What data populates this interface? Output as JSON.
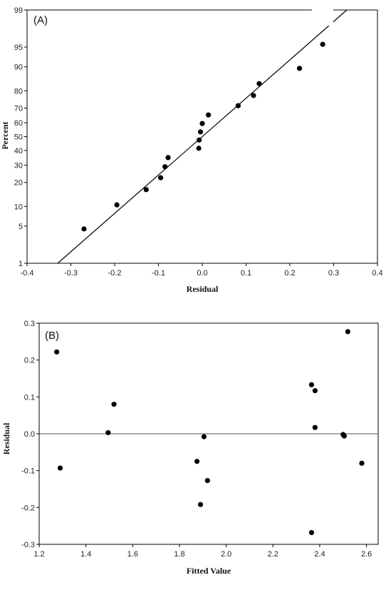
{
  "chart_data": [
    {
      "type": "scatter",
      "panel_label": "(A)",
      "xlabel": "Residual",
      "ylabel": "Percent",
      "xlim": [
        -0.4,
        0.4
      ],
      "y_scale": "normal-probability",
      "y_ticks": [
        1,
        5,
        10,
        20,
        30,
        40,
        50,
        60,
        70,
        80,
        90,
        95,
        99
      ],
      "x_ticks": [
        "-0.4",
        "-0.3",
        "-0.2",
        "-0.1",
        "0.0",
        "0.1",
        "0.2",
        "0.3",
        "0.4"
      ],
      "fit_line": {
        "x1": -0.33,
        "y1": 1,
        "x2": 0.33,
        "y2": 99
      },
      "points": [
        {
          "x": -0.27,
          "y": 4.5
        },
        {
          "x": -0.195,
          "y": 10.5
        },
        {
          "x": -0.128,
          "y": 16.5
        },
        {
          "x": -0.095,
          "y": 22.5
        },
        {
          "x": -0.085,
          "y": 29
        },
        {
          "x": -0.078,
          "y": 35
        },
        {
          "x": -0.008,
          "y": 41.5
        },
        {
          "x": -0.007,
          "y": 47.5
        },
        {
          "x": -0.004,
          "y": 53.5
        },
        {
          "x": 0.0,
          "y": 59.5
        },
        {
          "x": 0.014,
          "y": 65.5
        },
        {
          "x": 0.082,
          "y": 71.5
        },
        {
          "x": 0.117,
          "y": 77.5
        },
        {
          "x": 0.13,
          "y": 83.5
        },
        {
          "x": 0.222,
          "y": 89.5
        },
        {
          "x": 0.275,
          "y": 95.5
        }
      ]
    },
    {
      "type": "scatter",
      "panel_label": "(B)",
      "xlabel": "Fitted Value",
      "ylabel": "Residual",
      "xlim": [
        1.2,
        2.65
      ],
      "ylim": [
        -0.3,
        0.3
      ],
      "x_ticks": [
        "1.2",
        "1.4",
        "1.6",
        "1.8",
        "2.0",
        "2.2",
        "2.4",
        "2.6"
      ],
      "y_ticks": [
        "-0.3",
        "-0.2",
        "-0.1",
        "0.0",
        "0.1",
        "0.2",
        "0.3"
      ],
      "reference_line": 0,
      "points": [
        {
          "x": 1.275,
          "y": 0.222
        },
        {
          "x": 1.29,
          "y": -0.093
        },
        {
          "x": 1.495,
          "y": 0.003
        },
        {
          "x": 1.52,
          "y": 0.08
        },
        {
          "x": 1.875,
          "y": -0.075
        },
        {
          "x": 1.89,
          "y": -0.192
        },
        {
          "x": 1.905,
          "y": -0.008
        },
        {
          "x": 1.92,
          "y": -0.127
        },
        {
          "x": 2.365,
          "y": 0.133
        },
        {
          "x": 2.365,
          "y": -0.268
        },
        {
          "x": 2.38,
          "y": 0.117
        },
        {
          "x": 2.38,
          "y": 0.017
        },
        {
          "x": 2.5,
          "y": -0.002
        },
        {
          "x": 2.505,
          "y": -0.006
        },
        {
          "x": 2.52,
          "y": 0.277
        },
        {
          "x": 2.58,
          "y": -0.08
        }
      ]
    }
  ]
}
